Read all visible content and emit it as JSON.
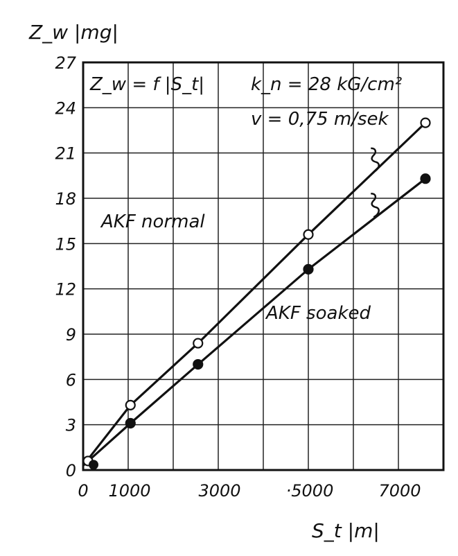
{
  "chart_data": {
    "type": "line",
    "title": "",
    "xlabel": "S_t |m|",
    "ylabel": "Z_w |mg|",
    "xlim": [
      0,
      8000
    ],
    "ylim": [
      0,
      27
    ],
    "x_ticks": [
      0,
      1000,
      3000,
      5000,
      7000
    ],
    "x_tick_labels": [
      "0",
      "1000",
      "3000",
      "·5000",
      "7000"
    ],
    "y_ticks": [
      0,
      3,
      6,
      9,
      12,
      15,
      18,
      21,
      24,
      27
    ],
    "grid": true,
    "annotations": {
      "formula": "Z_w = f |S_t|",
      "load": "k_n = 28 kG/cm²",
      "speed": "v = 0,75 m/sek"
    },
    "series": [
      {
        "name": "AKF normal",
        "marker": "open-circle",
        "x": [
          0,
          1050,
          2550,
          5000,
          7600
        ],
        "y": [
          0.3,
          4.3,
          8.4,
          15.6,
          23.0
        ]
      },
      {
        "name": "AKF soaked",
        "marker": "filled-circle",
        "x": [
          0,
          1050,
          2550,
          5000,
          7600
        ],
        "y": [
          0.3,
          3.1,
          7.0,
          13.3,
          19.3
        ]
      }
    ]
  }
}
